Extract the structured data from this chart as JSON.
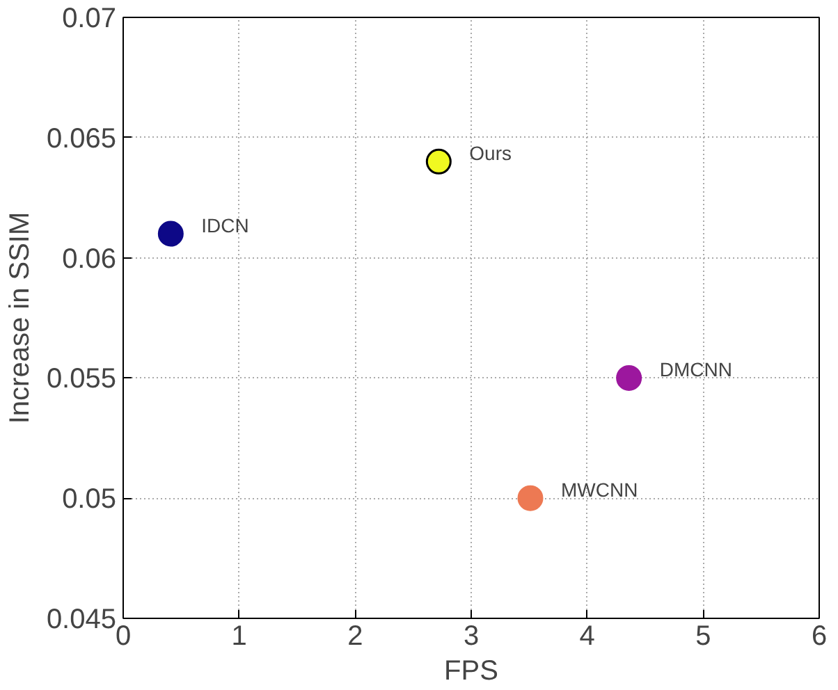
{
  "chart_data": {
    "type": "scatter",
    "xlabel": "FPS",
    "ylabel": "Increase in SSIM",
    "xlim": [
      0,
      6
    ],
    "ylim": [
      0.045,
      0.07
    ],
    "xticks": [
      0,
      1,
      2,
      3,
      4,
      5,
      6
    ],
    "yticks": [
      0.045,
      0.05,
      0.055,
      0.06,
      0.065,
      0.07
    ],
    "grid": true,
    "marker": "circle",
    "series": [
      {
        "name": "IDCN",
        "color": "#0d0887",
        "x": [
          0.41
        ],
        "values": [
          0.061
        ]
      },
      {
        "name": "Ours",
        "color": "#f0f921",
        "x": [
          2.72
        ],
        "values": [
          0.064
        ]
      },
      {
        "name": "DMCNN",
        "color": "#9c179e",
        "x": [
          4.36
        ],
        "values": [
          0.055
        ]
      },
      {
        "name": "MWCNN",
        "color": "#ed7953",
        "x": [
          3.51
        ],
        "values": [
          0.05
        ]
      }
    ]
  }
}
